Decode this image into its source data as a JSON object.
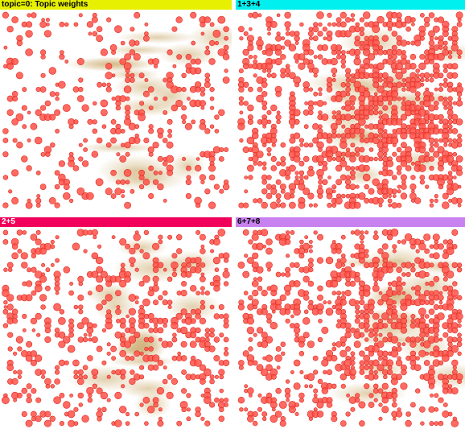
{
  "panels": [
    {
      "id": "p0",
      "title": "topic=0: Topic weights",
      "header_color": "#e6f000",
      "title_color": "#000000",
      "density": 0.35,
      "seed": 11
    },
    {
      "id": "p1",
      "title": "1+3+4",
      "header_color": "#00f0f0",
      "title_color": "#000000",
      "density": 0.85,
      "seed": 23
    },
    {
      "id": "p2",
      "title": "2+5",
      "header_color": "#f0005a",
      "title_color": "#ffffff",
      "density": 0.45,
      "seed": 37
    },
    {
      "id": "p3",
      "title": "6+7+8",
      "header_color": "#c882f0",
      "title_color": "#000000",
      "density": 0.7,
      "seed": 51
    }
  ],
  "colors": {
    "bubble_fill": "#ff5046",
    "bubble_stroke": "#d82d24",
    "heat_tint": "#c9a96a"
  }
}
